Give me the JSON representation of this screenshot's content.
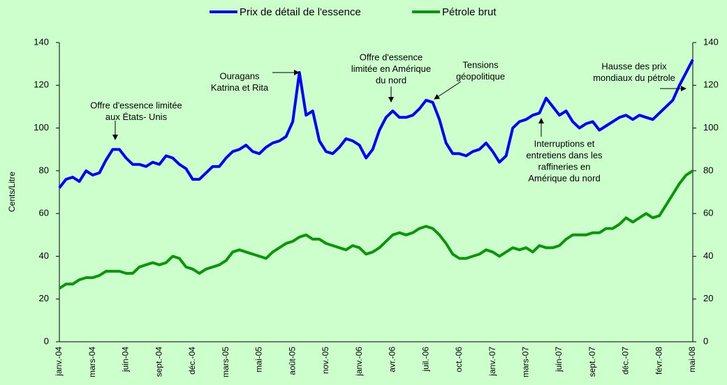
{
  "chart_data": {
    "type": "line",
    "legend": "top",
    "ylabel": "Cents/Litre",
    "categories": [
      "janv.-04",
      null,
      null,
      null,
      null,
      "mars-04",
      null,
      null,
      null,
      null,
      "juin-04",
      null,
      null,
      null,
      null,
      "sept.-04",
      null,
      null,
      null,
      null,
      "déc.-04",
      null,
      null,
      null,
      null,
      "mars-05",
      null,
      null,
      null,
      null,
      "mai-05",
      null,
      null,
      null,
      null,
      "août-05",
      null,
      null,
      null,
      null,
      "nov.-05",
      null,
      null,
      null,
      null,
      "janv.-06",
      null,
      null,
      null,
      null,
      "avr.-06",
      null,
      null,
      null,
      null,
      "juil.-06",
      null,
      null,
      null,
      null,
      "oct.-06",
      null,
      null,
      null,
      null,
      "janv.-07",
      null,
      null,
      null,
      null,
      "mars-07",
      null,
      null,
      null,
      null,
      "juin-07",
      null,
      null,
      null,
      null,
      "sept.-07",
      null,
      null,
      null,
      null,
      "déc.-07",
      null,
      null,
      null,
      null,
      "févr.-08",
      null,
      null,
      null,
      null,
      "mai-08"
    ],
    "series": [
      {
        "name": "Prix de détail de l'essence",
        "color": "#0000ff",
        "values": [
          72,
          76,
          77,
          75,
          80,
          78,
          79,
          85,
          90,
          90,
          86,
          83,
          83,
          82,
          84,
          83,
          87,
          86,
          83,
          81,
          76,
          76,
          79,
          82,
          82,
          86,
          89,
          90,
          92,
          89,
          88,
          91,
          93,
          94,
          96,
          103,
          126,
          106,
          108,
          94,
          89,
          88,
          91,
          95,
          94,
          92,
          86,
          90,
          99,
          105,
          108,
          105,
          105,
          106,
          109,
          113,
          112,
          104,
          93,
          88,
          88,
          87,
          89,
          90,
          93,
          89,
          84,
          87,
          100,
          103,
          104,
          106,
          107,
          114,
          110,
          106,
          108,
          103,
          100,
          102,
          103,
          99,
          101,
          103,
          105,
          106,
          104,
          106,
          105,
          104,
          107,
          110,
          113,
          120,
          126,
          132
        ]
      },
      {
        "name": "Pétrole brut",
        "color": "#0a960a",
        "values": [
          25,
          27,
          27,
          29,
          30,
          30,
          31,
          33,
          33,
          33,
          32,
          32,
          35,
          36,
          37,
          36,
          37,
          40,
          39,
          35,
          34,
          32,
          34,
          35,
          36,
          38,
          42,
          43,
          42,
          41,
          40,
          39,
          42,
          44,
          46,
          47,
          49,
          50,
          48,
          48,
          46,
          45,
          44,
          43,
          45,
          44,
          41,
          42,
          44,
          47,
          50,
          51,
          50,
          51,
          53,
          54,
          53,
          50,
          46,
          41,
          39,
          39,
          40,
          41,
          43,
          42,
          40,
          42,
          44,
          43,
          44,
          42,
          45,
          44,
          44,
          45,
          48,
          50,
          50,
          50,
          51,
          51,
          53,
          53,
          55,
          58,
          56,
          58,
          60,
          58,
          59,
          64,
          69,
          74,
          78,
          80
        ]
      }
    ],
    "ylim": [
      0,
      140
    ],
    "yticks": [
      0,
      20,
      40,
      60,
      80,
      100,
      120,
      140
    ],
    "y2lim": [
      0,
      140
    ],
    "y2ticks": [
      0,
      20,
      40,
      60,
      80,
      100,
      120,
      140
    ],
    "annotations": [
      [
        "Offre d'essence limitée",
        "aux États- Unis"
      ],
      [
        "Ouragans",
        "Katrina et Rita"
      ],
      [
        "Offre d'essence",
        "limitée en Amérique",
        "du nord"
      ],
      [
        "Tensions",
        "géopolitique"
      ],
      [
        "Interruptions et",
        "entretiens dans les",
        "raffineries en",
        "Amérique du nord"
      ],
      [
        "Hausse des prix",
        "mondiaux du pétrole"
      ]
    ]
  }
}
